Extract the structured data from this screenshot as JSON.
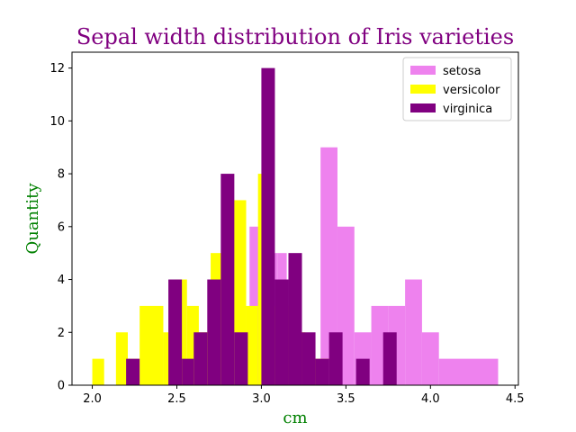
{
  "chart_data": {
    "type": "histogram",
    "title": "Sepal width distribution of Iris varieties",
    "xlabel": "cm",
    "ylabel": "Quantity",
    "title_color": "#800080",
    "label_color": "#008000",
    "xlim": [
      1.88,
      4.52
    ],
    "ylim": [
      0,
      12.6
    ],
    "xticks": [
      "2.0",
      "2.5",
      "3.0",
      "3.5",
      "4.0",
      "4.5"
    ],
    "xtick_values": [
      2.0,
      2.5,
      3.0,
      3.5,
      4.0,
      4.5
    ],
    "yticks": [
      "0",
      "2",
      "4",
      "6",
      "8",
      "10",
      "12"
    ],
    "ytick_values": [
      0,
      2,
      4,
      6,
      8,
      10,
      12
    ],
    "grid": false,
    "legend_position": "top-right",
    "series": [
      {
        "name": "setosa",
        "color": "#ee82ee",
        "bins": [
          {
            "x0": 2.3,
            "x1": 2.41,
            "value": 1
          },
          {
            "x0": 2.93,
            "x1": 2.985,
            "value": 6
          },
          {
            "x0": 2.985,
            "x1": 3.04,
            "value": 4
          },
          {
            "x0": 3.04,
            "x1": 3.095,
            "value": 5
          },
          {
            "x0": 3.095,
            "x1": 3.15,
            "value": 5
          },
          {
            "x0": 3.15,
            "x1": 3.205,
            "value": 2
          },
          {
            "x0": 3.205,
            "x1": 3.26,
            "value": 1
          },
          {
            "x0": 3.26,
            "x1": 3.35,
            "value": 1
          },
          {
            "x0": 3.35,
            "x1": 3.45,
            "value": 9
          },
          {
            "x0": 3.45,
            "x1": 3.55,
            "value": 6
          },
          {
            "x0": 3.55,
            "x1": 3.65,
            "value": 2
          },
          {
            "x0": 3.65,
            "x1": 3.75,
            "value": 3
          },
          {
            "x0": 3.75,
            "x1": 3.85,
            "value": 3
          },
          {
            "x0": 3.85,
            "x1": 3.95,
            "value": 4
          },
          {
            "x0": 3.95,
            "x1": 4.05,
            "value": 2
          },
          {
            "x0": 4.05,
            "x1": 4.4,
            "value": 1
          }
        ]
      },
      {
        "name": "versicolor",
        "color": "#ffff00",
        "bins": [
          {
            "x0": 2.0,
            "x1": 2.07,
            "value": 1
          },
          {
            "x0": 2.14,
            "x1": 2.21,
            "value": 2
          },
          {
            "x0": 2.21,
            "x1": 2.28,
            "value": 1
          },
          {
            "x0": 2.28,
            "x1": 2.42,
            "value": 3
          },
          {
            "x0": 2.42,
            "x1": 2.49,
            "value": 2
          },
          {
            "x0": 2.49,
            "x1": 2.56,
            "value": 4
          },
          {
            "x0": 2.56,
            "x1": 2.63,
            "value": 3
          },
          {
            "x0": 2.63,
            "x1": 2.7,
            "value": 2
          },
          {
            "x0": 2.7,
            "x1": 2.77,
            "value": 5
          },
          {
            "x0": 2.77,
            "x1": 2.84,
            "value": 7
          },
          {
            "x0": 2.84,
            "x1": 2.91,
            "value": 7
          },
          {
            "x0": 2.91,
            "x1": 2.98,
            "value": 3
          },
          {
            "x0": 2.98,
            "x1": 3.05,
            "value": 8
          },
          {
            "x0": 3.05,
            "x1": 3.12,
            "value": 3
          },
          {
            "x0": 3.12,
            "x1": 3.19,
            "value": 3
          },
          {
            "x0": 3.19,
            "x1": 3.26,
            "value": 2
          },
          {
            "x0": 3.26,
            "x1": 3.33,
            "value": 1
          },
          {
            "x0": 3.33,
            "x1": 3.4,
            "value": 1
          }
        ]
      },
      {
        "name": "virginica",
        "color": "#800080",
        "bins": [
          {
            "x0": 2.2,
            "x1": 2.28,
            "value": 1
          },
          {
            "x0": 2.45,
            "x1": 2.53,
            "value": 4
          },
          {
            "x0": 2.53,
            "x1": 2.6,
            "value": 1
          },
          {
            "x0": 2.6,
            "x1": 2.68,
            "value": 2
          },
          {
            "x0": 2.68,
            "x1": 2.76,
            "value": 4
          },
          {
            "x0": 2.76,
            "x1": 2.84,
            "value": 8
          },
          {
            "x0": 2.84,
            "x1": 2.92,
            "value": 2
          },
          {
            "x0": 3.0,
            "x1": 3.08,
            "value": 12
          },
          {
            "x0": 3.08,
            "x1": 3.16,
            "value": 4
          },
          {
            "x0": 3.16,
            "x1": 3.24,
            "value": 5
          },
          {
            "x0": 3.24,
            "x1": 3.32,
            "value": 2
          },
          {
            "x0": 3.32,
            "x1": 3.4,
            "value": 1
          },
          {
            "x0": 3.4,
            "x1": 3.48,
            "value": 2
          },
          {
            "x0": 3.56,
            "x1": 3.64,
            "value": 1
          },
          {
            "x0": 3.72,
            "x1": 3.8,
            "value": 2
          }
        ]
      }
    ]
  }
}
